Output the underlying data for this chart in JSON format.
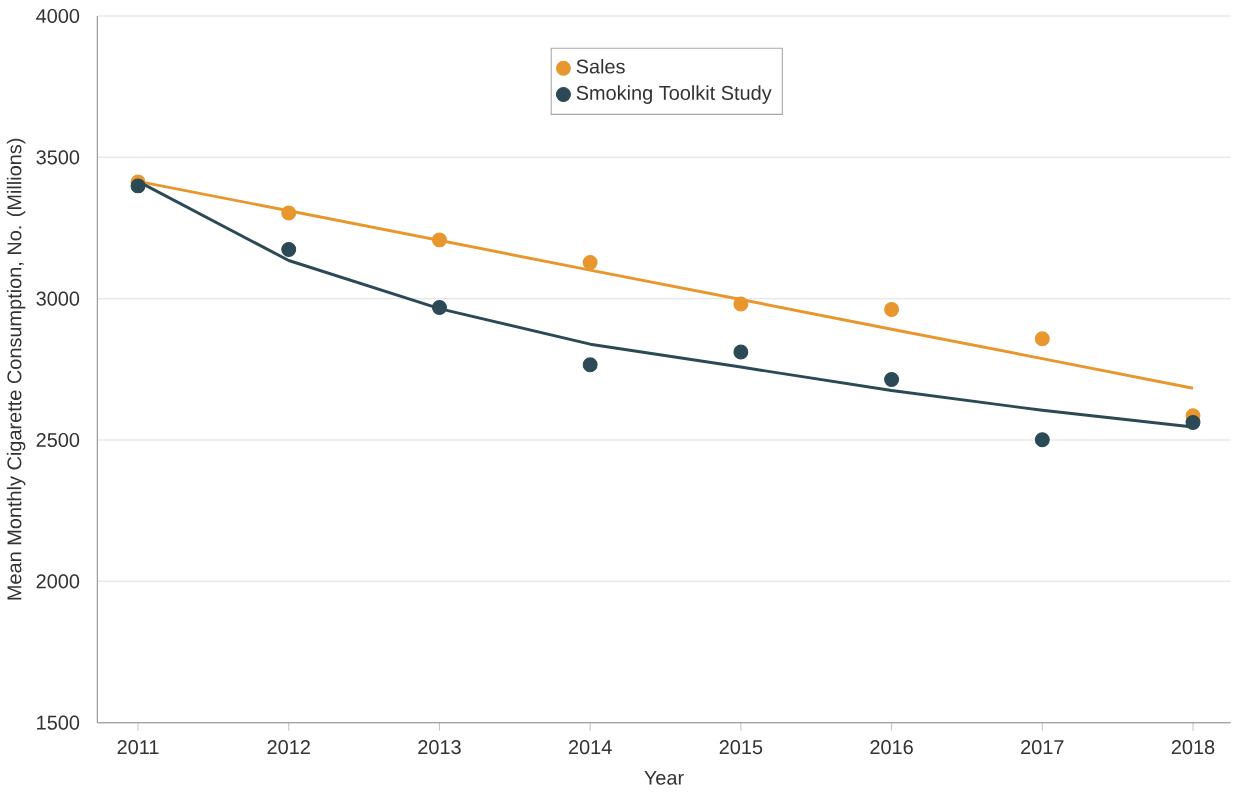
{
  "chart_data": {
    "type": "scatter",
    "xlabel": "Year",
    "ylabel": "Mean Monthly Cigarette Consumption, No. (Millions)",
    "x": [
      2011,
      2012,
      2013,
      2014,
      2015,
      2016,
      2017,
      2018
    ],
    "series": [
      {
        "name": "Sales",
        "marker": "circle",
        "color": "#e8972e",
        "values": [
          3413,
          3303,
          3208,
          3128,
          2981,
          2962,
          2858,
          2586
        ]
      },
      {
        "name": "Smoking Toolkit Study",
        "marker": "circle",
        "color": "#2b4a55",
        "values": [
          3399,
          3174,
          2969,
          2766,
          2811,
          2714,
          2501,
          2562
        ]
      },
      {
        "type": "line",
        "marker": "none",
        "color": "#e8972e",
        "values": [
          3415,
          3311,
          3206,
          3101,
          2997,
          2892,
          2788,
          2683
        ]
      },
      {
        "type": "line",
        "marker": "none",
        "color": "#2b4a55",
        "values": [
          3415,
          3135,
          2965,
          2839,
          2758,
          2675,
          2605,
          2546
        ]
      }
    ],
    "xlim": [
      2010.73,
      2018.25
    ],
    "ylim": [
      1500,
      4000
    ],
    "xticks": [
      2011,
      2012,
      2013,
      2014,
      2015,
      2016,
      2017,
      2018
    ],
    "yticks": [
      1500,
      2000,
      2500,
      3000,
      3500,
      4000
    ],
    "grid": "y",
    "legend": "top"
  }
}
